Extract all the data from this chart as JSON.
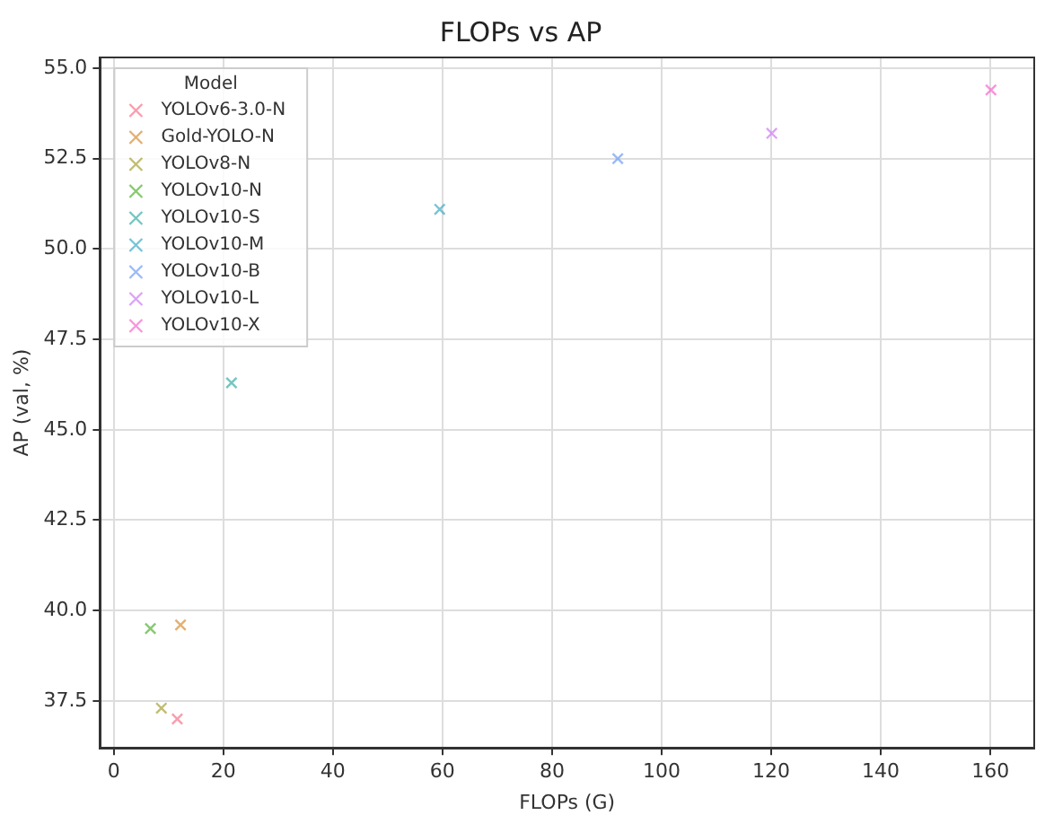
{
  "chart_data": {
    "type": "scatter",
    "title": "FLOPs vs AP",
    "xlabel": "FLOPs (G)",
    "ylabel": "AP (val, %)",
    "legend_title": "Model",
    "xlim": [
      -2.5,
      168
    ],
    "xticks": [
      0,
      20,
      40,
      60,
      80,
      100,
      120,
      140,
      160
    ],
    "ylim": [
      36.2,
      55.3
    ],
    "yticks": [
      {
        "value": 37.5,
        "label": "37.5"
      },
      {
        "value": 40,
        "label": "40.0"
      },
      {
        "value": 42.5,
        "label": "42.5"
      },
      {
        "value": 45,
        "label": "45.0"
      },
      {
        "value": 47.5,
        "label": "47.5"
      },
      {
        "value": 50,
        "label": "50.0"
      },
      {
        "value": 52.5,
        "label": "52.5"
      },
      {
        "value": 55,
        "label": "55.0"
      }
    ],
    "grid": true,
    "legend": "top left",
    "marker": "cross",
    "series": [
      {
        "name": "YOLOv6-3.0-N",
        "color": "#f77189",
        "x": [
          11.6
        ],
        "values": [
          37.0
        ]
      },
      {
        "name": "Gold-YOLO-N",
        "color": "#d58c32",
        "x": [
          12.2
        ],
        "values": [
          39.6
        ]
      },
      {
        "name": "YOLOv8-N",
        "color": "#a4a031",
        "x": [
          8.7
        ],
        "values": [
          37.3
        ]
      },
      {
        "name": "YOLOv10-N",
        "color": "#50b131",
        "x": [
          6.7
        ],
        "values": [
          39.5
        ]
      },
      {
        "name": "YOLOv10-S",
        "color": "#36ada4",
        "x": [
          21.5
        ],
        "values": [
          46.3
        ]
      },
      {
        "name": "YOLOv10-M",
        "color": "#38a9c5",
        "x": [
          59.5
        ],
        "values": [
          51.1
        ]
      },
      {
        "name": "YOLOv10-B",
        "color": "#6e9bf4",
        "x": [
          92
        ],
        "values": [
          52.5
        ]
      },
      {
        "name": "YOLOv10-L",
        "color": "#cc7af4",
        "x": [
          120.1
        ],
        "values": [
          53.2
        ]
      },
      {
        "name": "YOLOv10-X",
        "color": "#f565cc",
        "x": [
          160.1
        ],
        "values": [
          54.4
        ]
      }
    ]
  }
}
